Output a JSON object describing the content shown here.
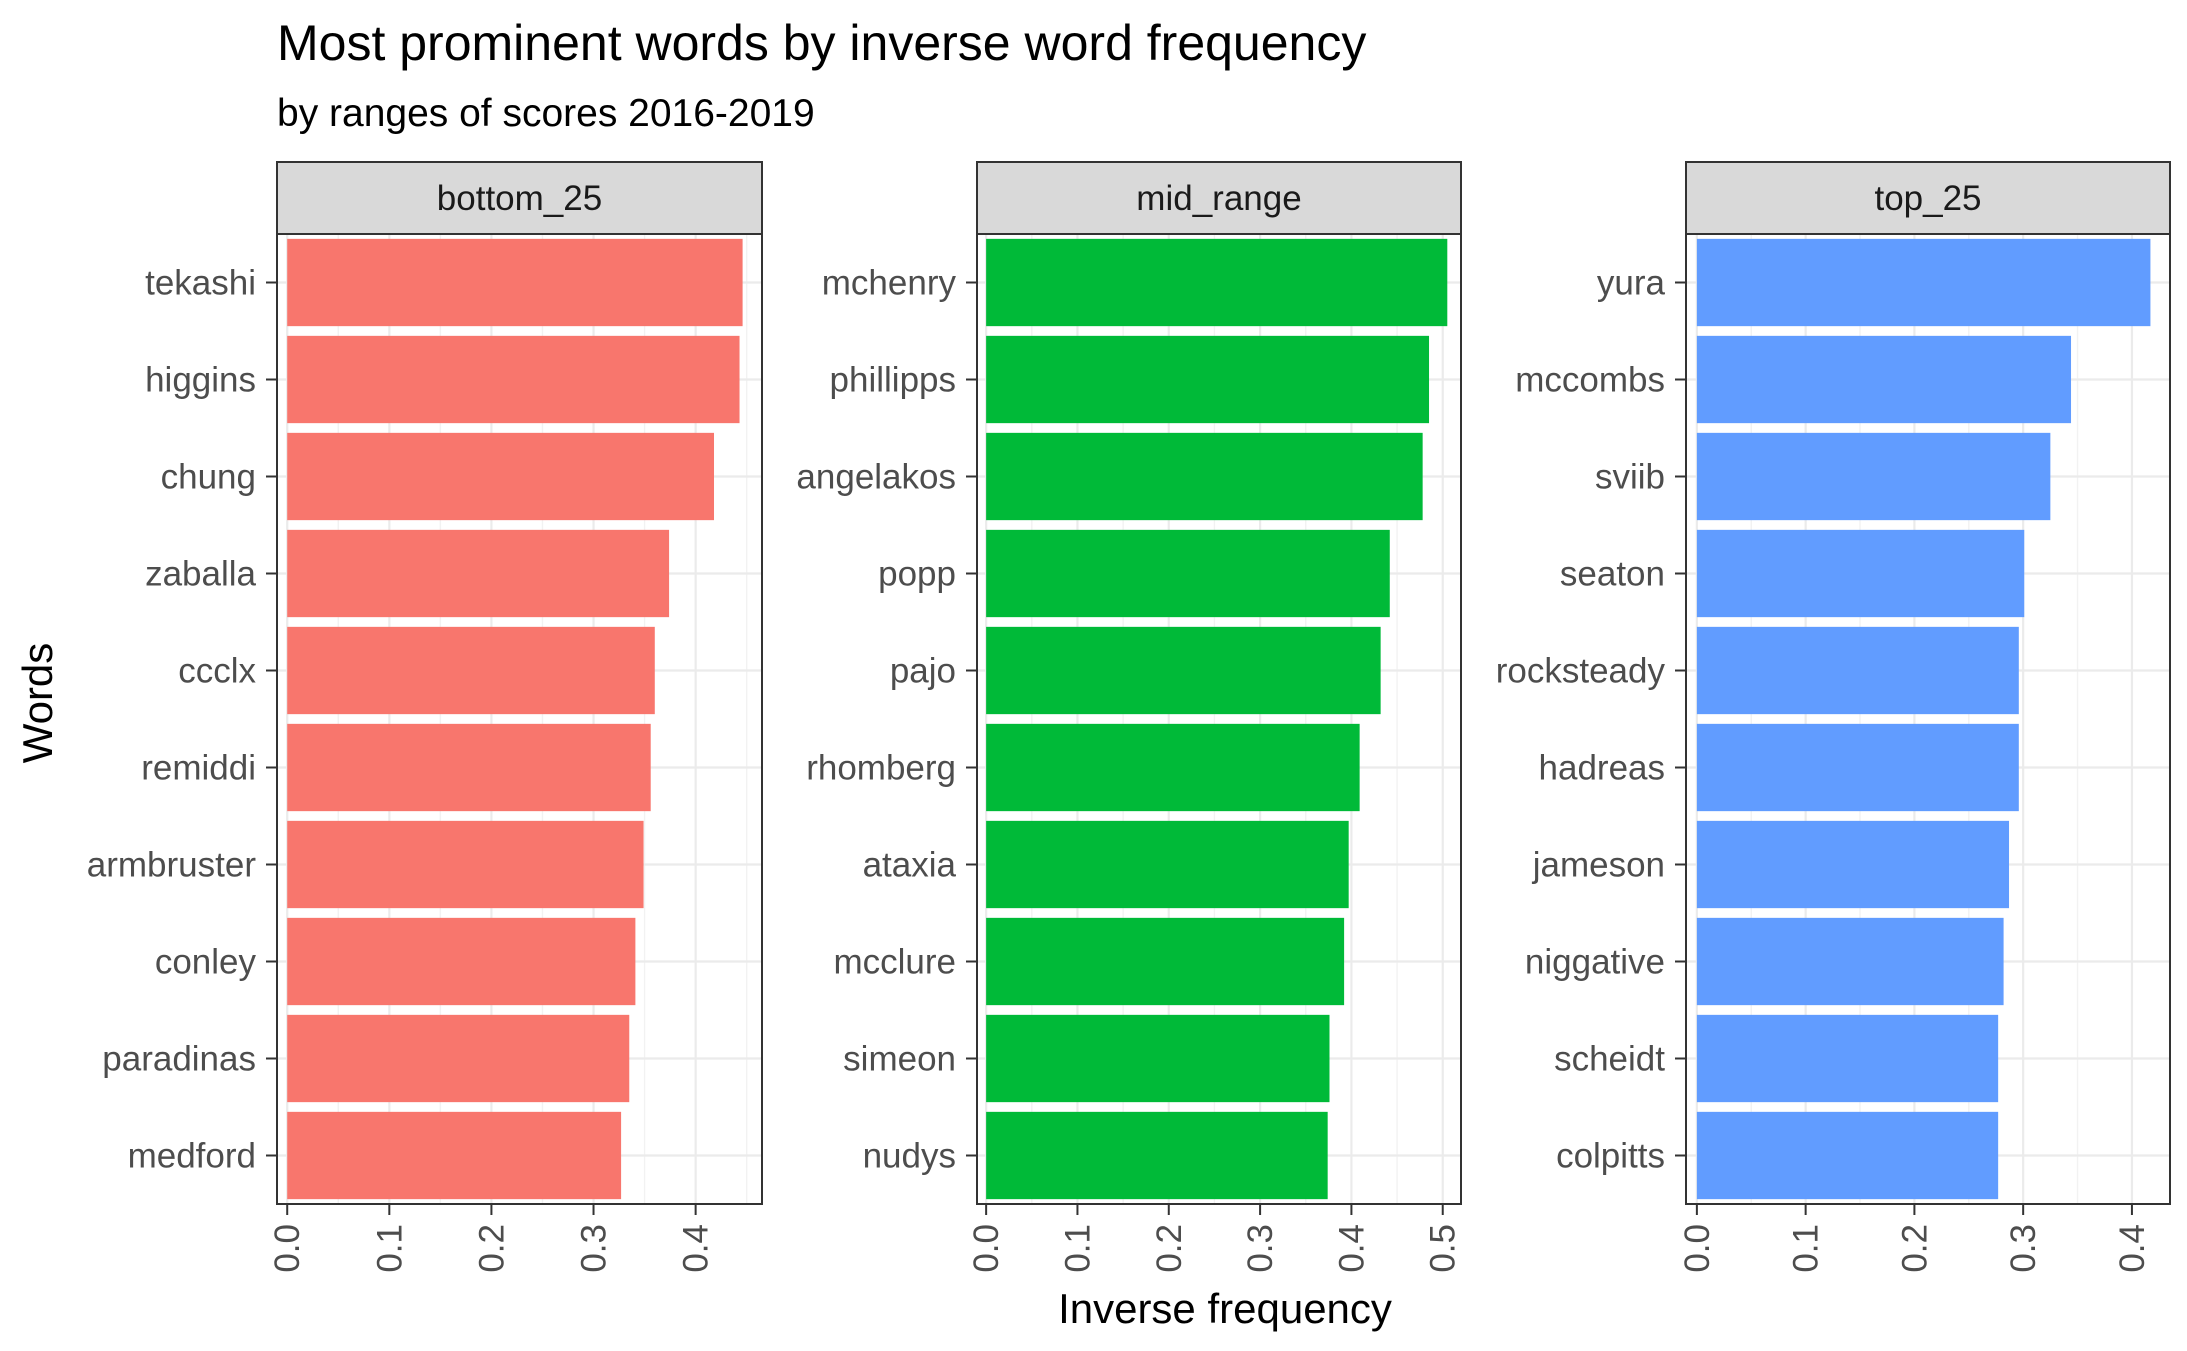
{
  "chart_data": {
    "type": "bar",
    "orientation": "horizontal",
    "title": "Most prominent words by inverse word frequency",
    "subtitle": "by ranges of scores 2016-2019",
    "xlabel": "Inverse frequency",
    "ylabel": "Words",
    "grid": true,
    "legend": "none",
    "panels": [
      {
        "name": "bottom_25",
        "color": "#F8766D",
        "xlim": [
          -0.01,
          0.465
        ],
        "x_ticks": [
          "0.0",
          "0.1",
          "0.2",
          "0.3",
          "0.4"
        ],
        "words": [
          "tekashi",
          "higgins",
          "chung",
          "zaballa",
          "ccclx",
          "remiddi",
          "armbruster",
          "conley",
          "paradinas",
          "medford"
        ],
        "values": [
          0.446,
          0.443,
          0.418,
          0.374,
          0.36,
          0.356,
          0.349,
          0.341,
          0.335,
          0.327
        ]
      },
      {
        "name": "mid_range",
        "color": "#00BA38",
        "xlim": [
          -0.01,
          0.52
        ],
        "x_ticks": [
          "0.0",
          "0.1",
          "0.2",
          "0.3",
          "0.4",
          "0.5"
        ],
        "words": [
          "mchenry",
          "phillipps",
          "angelakos",
          "popp",
          "pajo",
          "rhomberg",
          "ataxia",
          "mcclure",
          "simeon",
          "nudys"
        ],
        "values": [
          0.505,
          0.485,
          0.478,
          0.442,
          0.432,
          0.409,
          0.397,
          0.392,
          0.376,
          0.374
        ]
      },
      {
        "name": "top_25",
        "color": "#619CFF",
        "xlim": [
          -0.01,
          0.435
        ],
        "x_ticks": [
          "0.0",
          "0.1",
          "0.2",
          "0.3",
          "0.4"
        ],
        "words": [
          "yura",
          "mccombs",
          "sviib",
          "seaton",
          "rocksteady",
          "hadreas",
          "jameson",
          "niggative",
          "scheidt",
          "colpitts"
        ],
        "values": [
          0.417,
          0.344,
          0.325,
          0.301,
          0.296,
          0.296,
          0.287,
          0.282,
          0.277,
          0.277
        ]
      }
    ]
  }
}
